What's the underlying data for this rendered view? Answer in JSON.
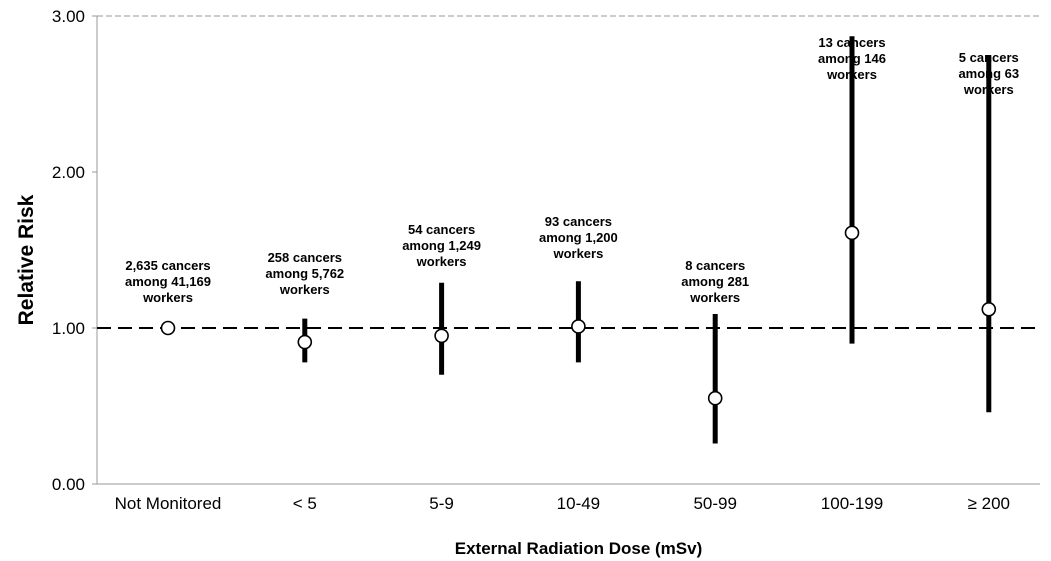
{
  "chart_data": {
    "type": "scatter",
    "title": "",
    "xlabel": "External Radiation Dose (mSv)",
    "ylabel": "Relative Risk",
    "ylim": [
      0,
      3
    ],
    "yticks": [
      "0.00",
      "1.00",
      "2.00",
      "3.00"
    ],
    "reference_line": 1.0,
    "categories": [
      "Not Monitored",
      "< 5",
      "5-9",
      "10-49",
      "50-99",
      "100-199",
      "≥ 200"
    ],
    "series": [
      {
        "values": [
          1.0,
          0.91,
          0.95,
          1.01,
          0.55,
          1.61,
          1.12
        ],
        "ci_lower": [
          null,
          0.78,
          0.7,
          0.78,
          0.26,
          0.9,
          0.46
        ],
        "ci_upper": [
          null,
          1.06,
          1.29,
          1.3,
          1.09,
          2.87,
          2.75
        ]
      }
    ],
    "annotations": [
      [
        "2,635 cancers",
        "among 41,169",
        "workers"
      ],
      [
        "258 cancers",
        "among 5,762",
        "workers"
      ],
      [
        "54 cancers",
        "among 1,249",
        "workers"
      ],
      [
        "93 cancers",
        "among 1,200",
        "workers"
      ],
      [
        "8 cancers",
        "among 281",
        "workers"
      ],
      [
        "13 cancers",
        "among 146",
        "workers"
      ],
      [
        "5 cancers",
        "among 63",
        "workers"
      ]
    ],
    "grid": false,
    "legend": "none"
  }
}
